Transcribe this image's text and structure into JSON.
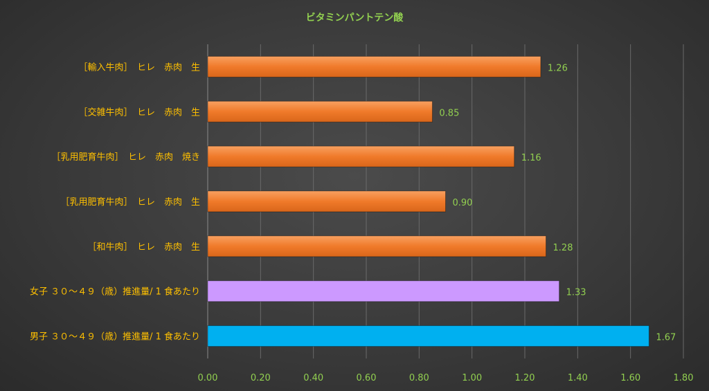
{
  "chart_data": {
    "type": "bar",
    "orientation": "horizontal",
    "title": "ビタミンパントテン酸",
    "xlabel": "",
    "ylabel": "",
    "xlim": [
      0,
      1.8
    ],
    "x_ticks": [
      "0.00",
      "0.20",
      "0.40",
      "0.60",
      "0.80",
      "1.00",
      "1.20",
      "1.40",
      "1.60",
      "1.80"
    ],
    "grid": "vertical",
    "legend": "none",
    "categories": [
      "［輸入牛肉］　ヒレ　赤肉　生",
      "［交雑牛肉］　ヒレ　赤肉　生",
      "［乳用肥育牛肉］　ヒレ　赤肉　焼き",
      "［乳用肥育牛肉］　ヒレ　赤肉　生",
      "［和牛肉］　ヒレ　赤肉　生",
      "女子 ３０～４９（歳）推進量/ 1 食あたり",
      "男子 ３０～４９（歳）推進量/ 1 食あたり"
    ],
    "values": [
      1.26,
      0.85,
      1.16,
      0.9,
      1.28,
      1.33,
      1.67
    ],
    "data_labels": [
      "1.26",
      "0.85",
      "1.16",
      "0.90",
      "1.28",
      "1.33",
      "1.67"
    ],
    "bar_colors": [
      "#f07a2a",
      "#f07a2a",
      "#f07a2a",
      "#f07a2a",
      "#f07a2a",
      "#cc99ff",
      "#00b0f0"
    ],
    "colors": {
      "title": "#92d050",
      "category_label": "#ffc000",
      "tick_label": "#92d050",
      "data_label": "#92d050",
      "gridline": "#6a6a6a"
    }
  }
}
